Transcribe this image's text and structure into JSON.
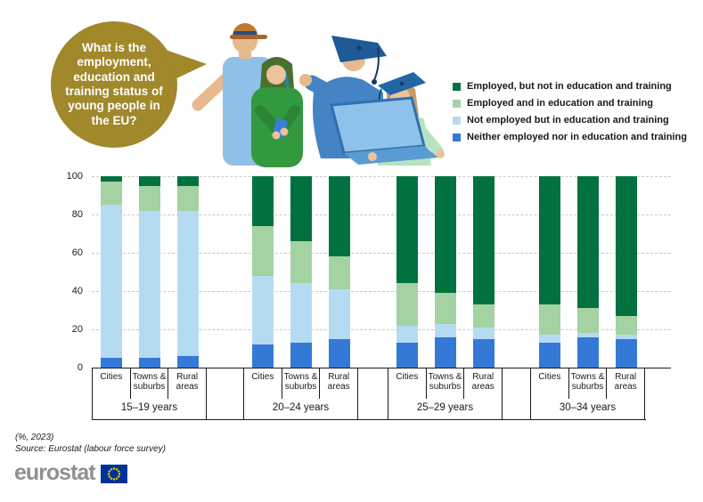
{
  "bubble": {
    "text": "What is the employment, education and training status of young people in the EU?",
    "bg_color": "#a0882b"
  },
  "illustration": {
    "description": "four young people: man with cap, woman with green hair holding phone, graduate in blue gown with mortarboard, young woman with mortarboard using a laptop"
  },
  "chart_data": {
    "type": "bar",
    "stacked": true,
    "unit": "%",
    "ylim": [
      0,
      100
    ],
    "y_ticks": [
      0,
      20,
      40,
      60,
      80,
      100
    ],
    "grid": "horizontal-dashed",
    "legend_position": "top-right",
    "groups": [
      "15–19 years",
      "20–24 years",
      "25–29 years",
      "30–34 years"
    ],
    "categories": [
      "Cities",
      "Towns & suburbs",
      "Rural areas"
    ],
    "stack_order_bottom_to_top": [
      "Neither employed nor in education and training",
      "Not employed but in education and training",
      "Employed and in education and training",
      "Employed, but not in education and training"
    ],
    "series": [
      {
        "name": "Employed, but not in education and training",
        "color": "#00713f",
        "values": [
          [
            3,
            5,
            5
          ],
          [
            26,
            34,
            42
          ],
          [
            56,
            61,
            67
          ],
          [
            67,
            69,
            73
          ]
        ]
      },
      {
        "name": "Employed and in education and training",
        "color": "#a4d2a2",
        "values": [
          [
            12,
            13,
            13
          ],
          [
            26,
            22,
            17
          ],
          [
            22,
            16,
            12
          ],
          [
            16,
            13,
            10
          ]
        ]
      },
      {
        "name": "Not employed but in education and training",
        "color": "#b5dbf3",
        "values": [
          [
            80,
            77,
            76
          ],
          [
            36,
            31,
            26
          ],
          [
            9,
            7,
            6
          ],
          [
            4,
            2,
            2
          ]
        ]
      },
      {
        "name": "Neither employed nor in education and training",
        "color": "#3579d6",
        "values": [
          [
            5,
            5,
            6
          ],
          [
            12,
            13,
            15
          ],
          [
            13,
            16,
            15
          ],
          [
            13,
            16,
            15
          ]
        ]
      }
    ]
  },
  "colors": {
    "axis": "#1a1a1a",
    "gridline": "#c9c9c9",
    "bubble_gold": "#a0882b",
    "eu_flag_blue": "#003399",
    "eu_flag_stars": "#ffcc00",
    "logo_gray": "#8e9093"
  },
  "footnote": "(%, 2023)",
  "source": "Source: Eurostat (labour force survey)",
  "logo": {
    "text": "eurostat"
  }
}
